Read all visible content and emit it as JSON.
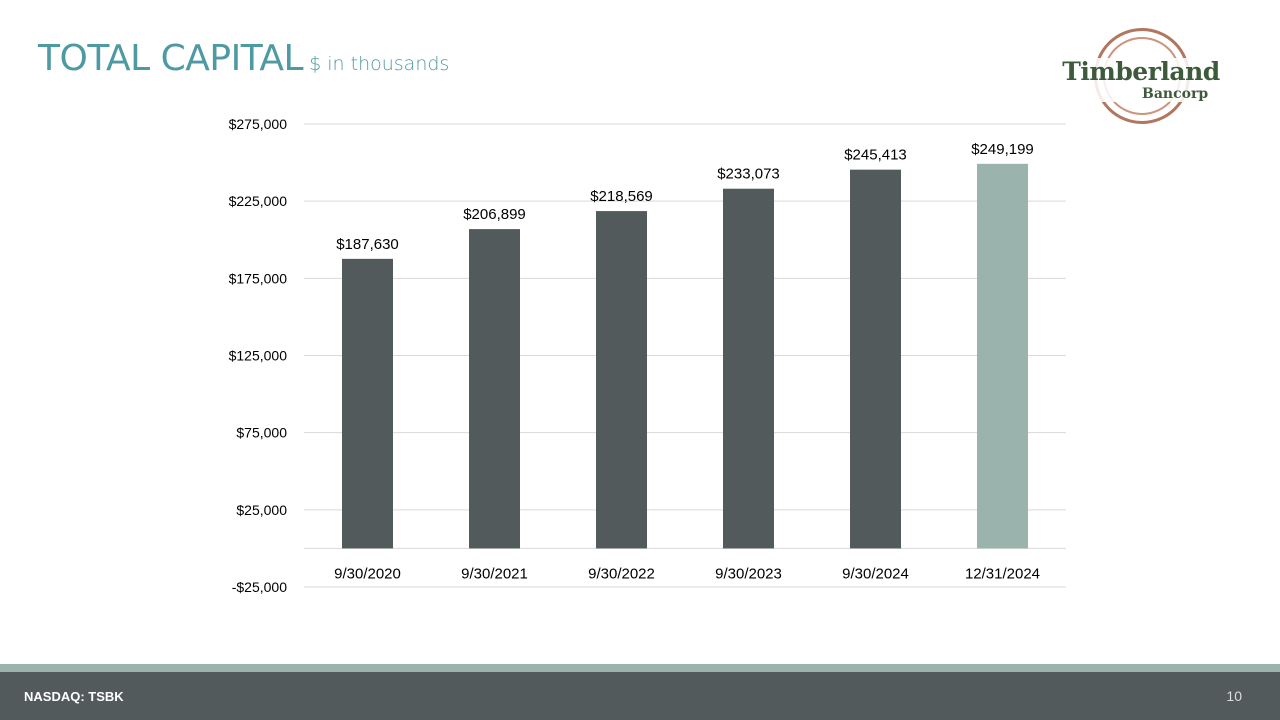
{
  "header": {
    "title": "TOTAL CAPITAL",
    "subtitle": "$ in thousands"
  },
  "logo": {
    "name": "Timberland",
    "sub": "Bancorp"
  },
  "colors": {
    "accent": "#4e9aa3",
    "bar_dark": "#525a5c",
    "bar_light": "#9bb3ad",
    "footer": "#525a5c",
    "logo_green": "#3d5a3c",
    "logo_brown": "#b0775e"
  },
  "chart_data": {
    "type": "bar",
    "title": "",
    "xlabel": "",
    "ylabel": "",
    "categories": [
      "9/30/2020",
      "9/30/2021",
      "9/30/2022",
      "9/30/2023",
      "9/30/2024",
      "12/31/2024"
    ],
    "values": [
      187630,
      206899,
      218569,
      233073,
      245413,
      249199
    ],
    "data_labels": [
      "$187,630",
      "$206,899",
      "$218,569",
      "$233,073",
      "$245,413",
      "$249,199"
    ],
    "highlight_index": 5,
    "ylim": [
      -25000,
      275000
    ],
    "yticks": [
      -25000,
      25000,
      75000,
      125000,
      175000,
      225000,
      275000
    ],
    "ytick_labels": [
      "-$25,000",
      "$25,000",
      "$75,000",
      "$125,000",
      "$175,000",
      "$225,000",
      "$275,000"
    ],
    "grid": true,
    "legend": "none"
  },
  "footer": {
    "ticker": "NASDAQ: TSBK",
    "page": "10"
  }
}
